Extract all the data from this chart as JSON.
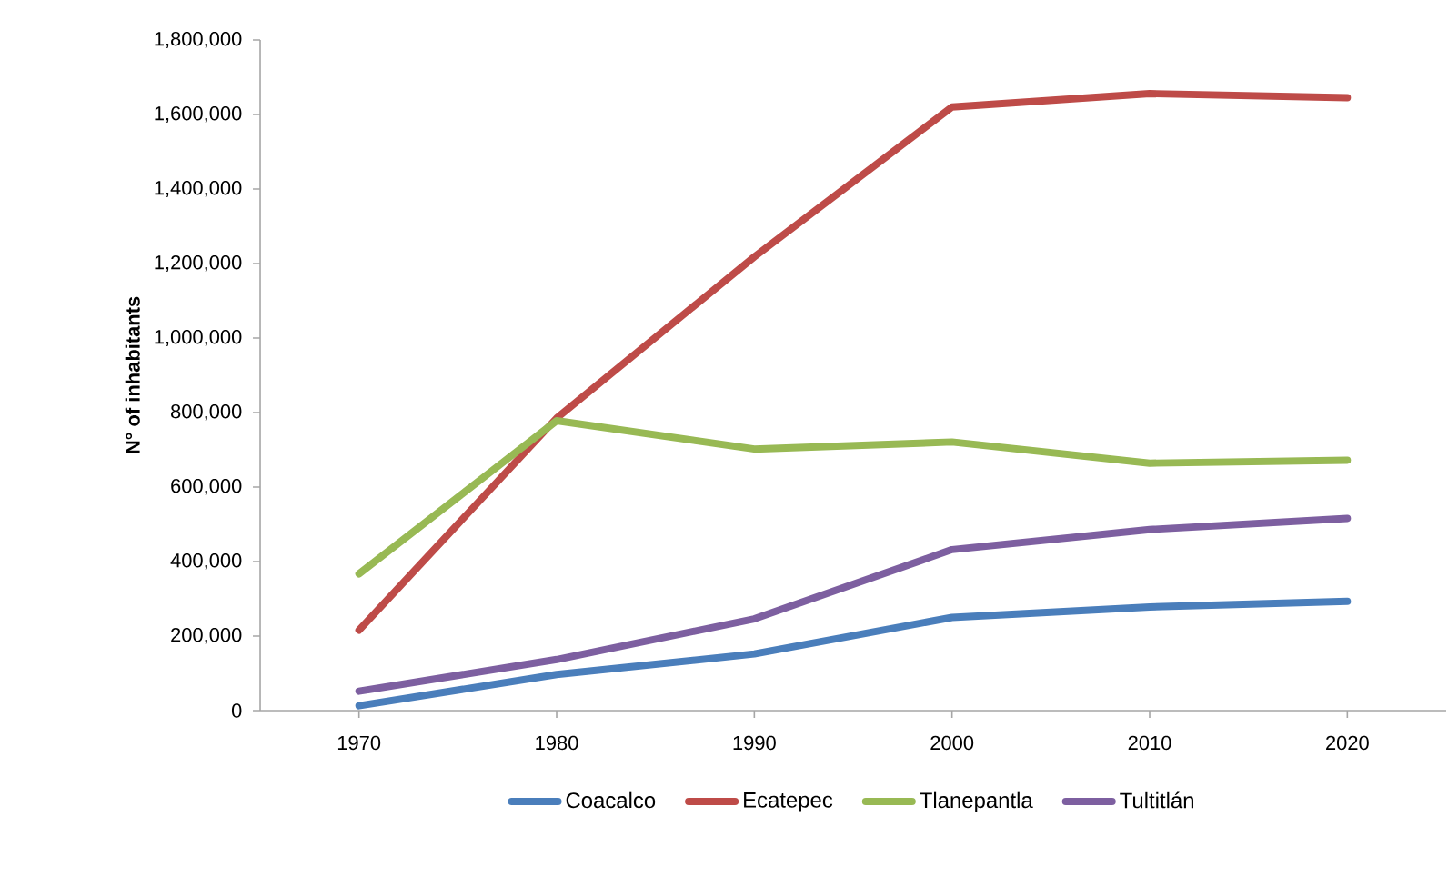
{
  "chart_data": {
    "type": "line",
    "ylabel": "N° of inhabitants",
    "categories": [
      "1970",
      "1980",
      "1990",
      "2000",
      "2010",
      "2020"
    ],
    "ylim": [
      0,
      1800000
    ],
    "yticks": [
      0,
      {
        "value": 200000,
        "label": "200,000"
      },
      {
        "value": 400000,
        "label": "400,000"
      },
      {
        "value": 600000,
        "label": "600,000"
      },
      {
        "value": 800000,
        "label": "800,000"
      },
      {
        "value": 1000000,
        "label": "1,000,000"
      },
      {
        "value": 1200000,
        "label": "1,200,000"
      },
      {
        "value": 1400000,
        "label": "1,400,000"
      },
      {
        "value": 1600000,
        "label": "1,600,000"
      },
      {
        "value": 1800000,
        "label": "1,800,000"
      }
    ],
    "series": [
      {
        "name": "Coacalco",
        "color": "#4a7ebb",
        "values": [
          13000,
          97000,
          152000,
          250000,
          278000,
          293000
        ]
      },
      {
        "name": "Ecatepec",
        "color": "#be4b48",
        "values": [
          216000,
          785000,
          1218000,
          1620000,
          1656000,
          1645000
        ]
      },
      {
        "name": "Tlanepantla",
        "color": "#98b954",
        "values": [
          367000,
          778000,
          702000,
          721000,
          664000,
          672000
        ]
      },
      {
        "name": "Tultitlán",
        "color": "#7d5fa0",
        "values": [
          52000,
          137000,
          246000,
          432000,
          486000,
          516000
        ]
      }
    ],
    "legend": "bottom",
    "grid": false,
    "marker": "none",
    "line_style": "solid"
  }
}
